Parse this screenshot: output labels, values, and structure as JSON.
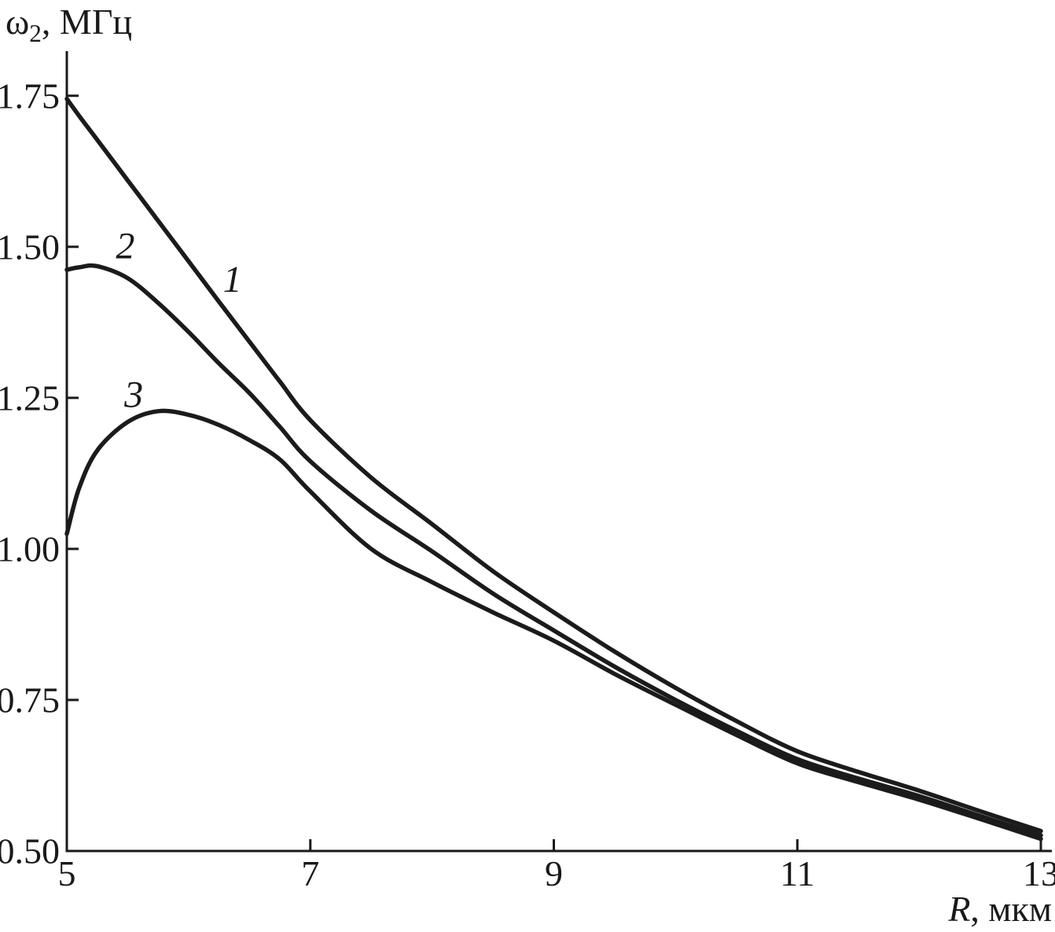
{
  "y_axis_title": {
    "symbol": "ω",
    "subscript": "2",
    "rest": ", МГц"
  },
  "x_axis_title": {
    "variable": "R",
    "rest": ", мкм"
  },
  "chart_data": {
    "type": "line",
    "title": "",
    "xlabel": "R, мкм",
    "ylabel": "ω2, МГц",
    "xlim": [
      5,
      13
    ],
    "ylim": [
      0.5,
      1.8225
    ],
    "grid": false,
    "legend_position": "inline-curve-labels",
    "line_color": "#1b1b1b",
    "x_ticks": [
      5,
      7,
      9,
      11,
      13
    ],
    "y_ticks": [
      "1.75",
      "1.50",
      "1.25",
      "1.00",
      "0.75",
      "0.50"
    ],
    "y_tick_values": [
      1.75,
      1.5,
      1.25,
      1.0,
      0.75,
      0.5
    ],
    "x": [
      5,
      5.1,
      5.25,
      5.5,
      5.75,
      6,
      6.25,
      6.5,
      6.75,
      7,
      7.5,
      8,
      8.5,
      9,
      9.5,
      10,
      10.5,
      11,
      11.5,
      12,
      12.5,
      13
    ],
    "series": [
      {
        "name": "1",
        "values": [
          1.745,
          1.717,
          1.677,
          1.61,
          1.543,
          1.476,
          1.409,
          1.343,
          1.277,
          1.213,
          1.118,
          1.041,
          0.963,
          0.895,
          0.83,
          0.77,
          0.715,
          0.665,
          0.631,
          0.6,
          0.566,
          0.533
        ]
      },
      {
        "name": "2",
        "values": [
          1.462,
          1.466,
          1.468,
          1.448,
          1.407,
          1.359,
          1.307,
          1.258,
          1.202,
          1.145,
          1.063,
          0.996,
          0.926,
          0.865,
          0.805,
          0.75,
          0.699,
          0.652,
          0.62,
          0.591,
          0.558,
          0.526
        ]
      },
      {
        "name": "3",
        "values": [
          1.025,
          1.1,
          1.163,
          1.21,
          1.228,
          1.222,
          1.205,
          1.18,
          1.148,
          1.095,
          1.0,
          0.945,
          0.895,
          0.848,
          0.793,
          0.742,
          0.692,
          0.645,
          0.614,
          0.585,
          0.553,
          0.52
        ]
      }
    ],
    "annotations": [
      {
        "label": "1",
        "x": 6.36,
        "y": 1.446
      },
      {
        "label": "2",
        "x": 5.48,
        "y": 1.501
      },
      {
        "label": "3",
        "x": 5.55,
        "y": 1.255
      }
    ]
  }
}
